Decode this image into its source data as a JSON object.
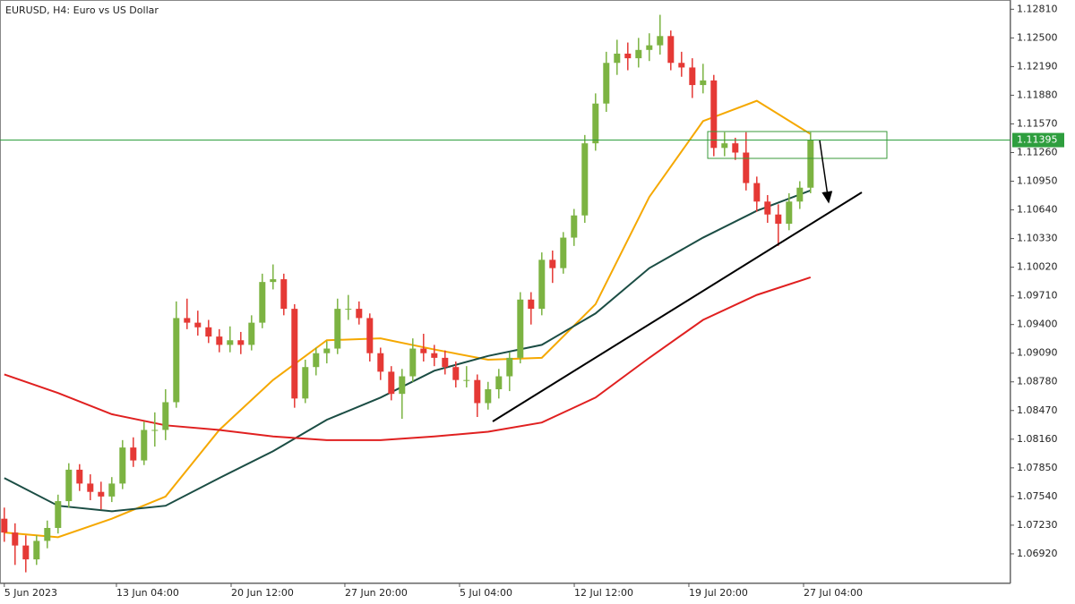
{
  "chart_data": {
    "type": "candlestick",
    "title": "EURUSD, H4:  Euro vs US Dollar",
    "up_color": "#7cb342",
    "down_color": "#e53935",
    "candles": [
      [
        1.073,
        1.0742,
        1.0705,
        1.0715
      ],
      [
        1.0715,
        1.0725,
        1.068,
        1.0701
      ],
      [
        1.0701,
        1.0712,
        1.0672,
        1.0686
      ],
      [
        1.0686,
        1.0712,
        1.068,
        1.0706
      ],
      [
        1.0706,
        1.0728,
        1.0698,
        1.072
      ],
      [
        1.072,
        1.0756,
        1.0714,
        1.0749
      ],
      [
        1.0749,
        1.079,
        1.0742,
        1.0783
      ],
      [
        1.0783,
        1.0789,
        1.076,
        1.0768
      ],
      [
        1.0768,
        1.0778,
        1.075,
        1.0759
      ],
      [
        1.0759,
        1.077,
        1.074,
        1.0754
      ],
      [
        1.0754,
        1.0775,
        1.0748,
        1.0768
      ],
      [
        1.0768,
        1.0815,
        1.0762,
        1.0807
      ],
      [
        1.0807,
        1.0818,
        1.0786,
        1.0793
      ],
      [
        1.0793,
        1.0835,
        1.0788,
        1.0826
      ],
      [
        1.0826,
        1.0845,
        1.0808,
        1.0826
      ],
      [
        1.0826,
        1.087,
        1.0815,
        1.0856
      ],
      [
        1.0856,
        1.0965,
        1.085,
        1.0947
      ],
      [
        1.0947,
        1.0968,
        1.0935,
        1.0942
      ],
      [
        1.0942,
        1.0955,
        1.0928,
        1.0937
      ],
      [
        1.0937,
        1.0945,
        1.092,
        1.0927
      ],
      [
        1.0927,
        1.0935,
        1.091,
        1.0918
      ],
      [
        1.0918,
        1.0938,
        1.091,
        1.0923
      ],
      [
        1.0923,
        1.0932,
        1.0908,
        1.0918
      ],
      [
        1.0918,
        1.095,
        1.0912,
        1.0942
      ],
      [
        1.0942,
        1.0995,
        1.0936,
        1.0986
      ],
      [
        1.0986,
        1.1005,
        1.0978,
        1.0989
      ],
      [
        1.0989,
        1.0995,
        1.095,
        1.0957
      ],
      [
        1.0957,
        1.0962,
        1.085,
        1.086
      ],
      [
        1.086,
        1.0902,
        1.0855,
        1.0894
      ],
      [
        1.0894,
        1.0915,
        1.0885,
        1.0909
      ],
      [
        1.0909,
        1.0922,
        1.0898,
        1.0914
      ],
      [
        1.0914,
        1.0968,
        1.0908,
        1.0957
      ],
      [
        1.0957,
        1.0972,
        1.0945,
        1.0957
      ],
      [
        1.0957,
        1.0965,
        1.094,
        1.0947
      ],
      [
        1.0947,
        1.0952,
        1.09,
        1.0909
      ],
      [
        1.0909,
        1.0915,
        1.088,
        1.0889
      ],
      [
        1.0889,
        1.0895,
        1.0858,
        1.0865
      ],
      [
        1.0865,
        1.0892,
        1.0838,
        1.0884
      ],
      [
        1.0884,
        1.0925,
        1.0878,
        1.0914
      ],
      [
        1.0914,
        1.093,
        1.09,
        1.0909
      ],
      [
        1.0909,
        1.0918,
        1.0895,
        1.0904
      ],
      [
        1.0904,
        1.0912,
        1.0886,
        1.0894
      ],
      [
        1.0894,
        1.09,
        1.0872,
        1.088
      ],
      [
        1.088,
        1.0895,
        1.0872,
        1.088
      ],
      [
        1.088,
        1.0886,
        1.084,
        1.0855
      ],
      [
        1.0855,
        1.0878,
        1.0848,
        1.087
      ],
      [
        1.087,
        1.0892,
        1.086,
        1.0884
      ],
      [
        1.0884,
        1.091,
        1.0868,
        1.0904
      ],
      [
        1.0904,
        1.0975,
        1.0898,
        1.0967
      ],
      [
        1.0967,
        1.0975,
        1.094,
        1.0957
      ],
      [
        1.0957,
        1.1018,
        1.095,
        1.101
      ],
      [
        1.101,
        1.102,
        1.0985,
        1.1001
      ],
      [
        1.1001,
        1.104,
        1.0995,
        1.1034
      ],
      [
        1.1034,
        1.1065,
        1.1025,
        1.1058
      ],
      [
        1.1058,
        1.1145,
        1.105,
        1.1136
      ],
      [
        1.1136,
        1.119,
        1.1128,
        1.1179
      ],
      [
        1.1179,
        1.1235,
        1.117,
        1.1223
      ],
      [
        1.1223,
        1.1248,
        1.121,
        1.1233
      ],
      [
        1.1233,
        1.1245,
        1.1215,
        1.1228
      ],
      [
        1.1228,
        1.125,
        1.1218,
        1.1237
      ],
      [
        1.1237,
        1.1255,
        1.1225,
        1.1242
      ],
      [
        1.1242,
        1.1275,
        1.1232,
        1.1252
      ],
      [
        1.1252,
        1.1258,
        1.1215,
        1.1223
      ],
      [
        1.1223,
        1.1235,
        1.1208,
        1.1218
      ],
      [
        1.1218,
        1.1228,
        1.1185,
        1.1199
      ],
      [
        1.1199,
        1.1222,
        1.119,
        1.1204
      ],
      [
        1.1204,
        1.121,
        1.1122,
        1.1131
      ],
      [
        1.1131,
        1.1148,
        1.1122,
        1.1136
      ],
      [
        1.1136,
        1.1142,
        1.1118,
        1.1126
      ],
      [
        1.1126,
        1.1148,
        1.1085,
        1.1093
      ],
      [
        1.1093,
        1.11,
        1.1062,
        1.1073
      ],
      [
        1.1073,
        1.108,
        1.105,
        1.1059
      ],
      [
        1.1059,
        1.107,
        1.1025,
        1.1049
      ],
      [
        1.1049,
        1.1082,
        1.1042,
        1.1073
      ],
      [
        1.1073,
        1.1095,
        1.1065,
        1.1088
      ],
      [
        1.1088,
        1.1148,
        1.1082,
        1.11395
      ]
    ],
    "lines": [
      {
        "color": "#f5a800",
        "x": [
          0,
          5,
          10,
          15,
          20,
          25,
          30,
          35,
          40,
          45,
          50,
          55,
          60,
          65,
          70,
          75
        ],
        "values": [
          1.0715,
          1.071,
          1.073,
          1.0754,
          1.0826,
          1.088,
          1.0923,
          1.0925,
          1.0913,
          1.0902,
          1.0904,
          1.0962,
          1.1078,
          1.116,
          1.1182,
          1.1146
        ]
      },
      {
        "color": "#1b4d44",
        "x": [
          0,
          5,
          10,
          15,
          20,
          25,
          30,
          35,
          40,
          45,
          50,
          55,
          60,
          65,
          70,
          75
        ],
        "values": [
          1.0774,
          1.0744,
          1.0738,
          1.0744,
          1.0774,
          1.0803,
          1.0837,
          1.0861,
          1.089,
          1.0906,
          1.0918,
          1.0952,
          1.1001,
          1.1034,
          1.1063,
          1.1085
        ]
      },
      {
        "color": "#e02020",
        "x": [
          0,
          5,
          10,
          15,
          20,
          25,
          30,
          35,
          40,
          45,
          50,
          55,
          60,
          65,
          70,
          75
        ],
        "values": [
          1.0886,
          1.0866,
          1.0843,
          1.0831,
          1.0826,
          1.0819,
          1.0815,
          1.0815,
          1.0819,
          1.0824,
          1.0834,
          1.0861,
          1.0904,
          1.0945,
          1.0972,
          1.0991
        ]
      }
    ],
    "current_price": 1.11395,
    "current_price_color": "#2e9e3e",
    "xlim": [
      -0.4,
      93.6
    ],
    "ylim": [
      1.066,
      1.1291
    ],
    "xticks": [
      {
        "value": 0,
        "label": "5 Jun 2023"
      },
      {
        "value": 10.43,
        "label": "13 Jun 04:00"
      },
      {
        "value": 21.1,
        "label": "20 Jun 12:00"
      },
      {
        "value": 31.68,
        "label": "27 Jun 20:00"
      },
      {
        "value": 42.35,
        "label": "5 Jul 04:00"
      },
      {
        "value": 53.02,
        "label": "12 Jul 12:00"
      },
      {
        "value": 63.68,
        "label": "19 Jul 20:00"
      },
      {
        "value": 74.35,
        "label": "27 Jul 04:00"
      }
    ],
    "yticks": [
      {
        "value": 1.1281,
        "label": "1.12810"
      },
      {
        "value": 1.125,
        "label": "1.12500"
      },
      {
        "value": 1.1219,
        "label": "1.12190"
      },
      {
        "value": 1.1188,
        "label": "1.11880"
      },
      {
        "value": 1.1157,
        "label": "1.11570"
      },
      {
        "value": 1.1126,
        "label": "1.11260"
      },
      {
        "value": 1.1095,
        "label": "1.10950"
      },
      {
        "value": 1.1064,
        "label": "1.10640"
      },
      {
        "value": 1.1033,
        "label": "1.10330"
      },
      {
        "value": 1.1002,
        "label": "1.10020"
      },
      {
        "value": 1.0971,
        "label": "1.09710"
      },
      {
        "value": 1.094,
        "label": "1.09400"
      },
      {
        "value": 1.0909,
        "label": "1.09090"
      },
      {
        "value": 1.0878,
        "label": "1.08780"
      },
      {
        "value": 1.0847,
        "label": "1.08470"
      },
      {
        "value": 1.0816,
        "label": "1.08160"
      },
      {
        "value": 1.0785,
        "label": "1.07850"
      },
      {
        "value": 1.0754,
        "label": "1.07540"
      },
      {
        "value": 1.0723,
        "label": "1.07230"
      },
      {
        "value": 1.0692,
        "label": "1.06920"
      }
    ]
  }
}
